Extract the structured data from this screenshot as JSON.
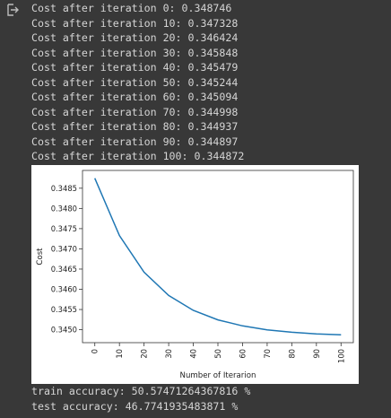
{
  "output_icon": "output-redirect-icon",
  "console_lines": [
    "Cost after iteration 0: 0.348746",
    "Cost after iteration 10: 0.347328",
    "Cost after iteration 20: 0.346424",
    "Cost after iteration 30: 0.345848",
    "Cost after iteration 40: 0.345479",
    "Cost after iteration 50: 0.345244",
    "Cost after iteration 60: 0.345094",
    "Cost after iteration 70: 0.344998",
    "Cost after iteration 80: 0.344937",
    "Cost after iteration 90: 0.344897",
    "Cost after iteration 100: 0.344872"
  ],
  "chart_data": {
    "type": "line",
    "title": "",
    "xlabel": "Number of Iterarion",
    "ylabel": "Cost",
    "x": [
      0,
      10,
      20,
      30,
      40,
      50,
      60,
      70,
      80,
      90,
      100
    ],
    "xticks": [
      "0",
      "10",
      "20",
      "30",
      "40",
      "50",
      "60",
      "70",
      "80",
      "90",
      "100"
    ],
    "yticks": [
      "0.3450",
      "0.3455",
      "0.3460",
      "0.3465",
      "0.3470",
      "0.3475",
      "0.3480",
      "0.3485"
    ],
    "ytick_values": [
      0.345,
      0.3455,
      0.346,
      0.3465,
      0.347,
      0.3475,
      0.348,
      0.3485
    ],
    "xlim": [
      -5,
      105
    ],
    "ylim": [
      0.34468,
      0.34894
    ],
    "grid": false,
    "series": [
      {
        "values": [
          0.348746,
          0.347328,
          0.346424,
          0.345848,
          0.345479,
          0.345244,
          0.345094,
          0.344998,
          0.344937,
          0.344897,
          0.344872
        ],
        "color": "#1f77b4"
      }
    ]
  },
  "results": {
    "train_accuracy": "train accuracy: 50.57471264367816 %",
    "test_accuracy": "test accuracy: 46.7741935483871 %"
  },
  "colors": {
    "background": "#383838",
    "text": "#d5d5d5",
    "line": "#1f77b4"
  }
}
